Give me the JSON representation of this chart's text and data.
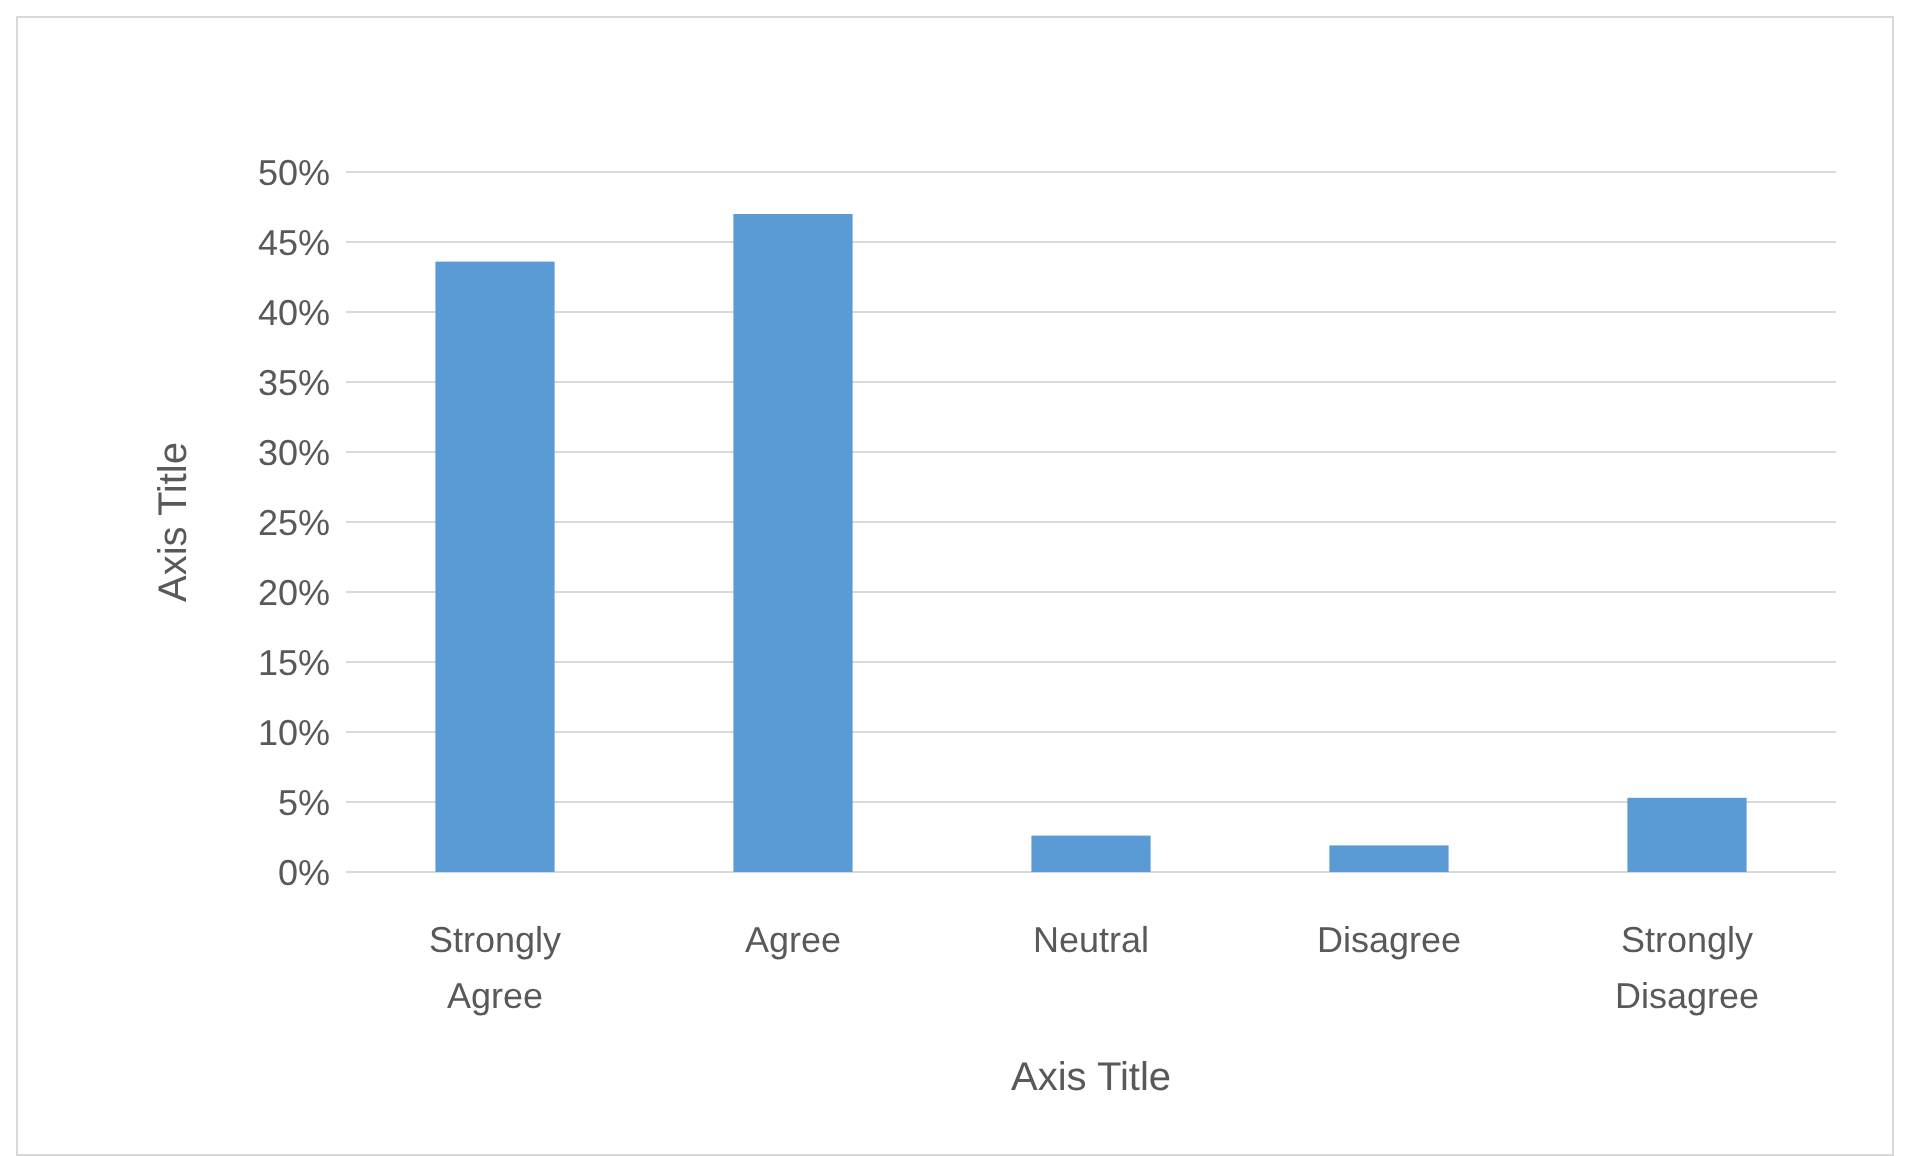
{
  "chart_data": {
    "type": "bar",
    "xlabel": "Axis Title",
    "ylabel": "Axis Title",
    "categories": [
      "Strongly Agree",
      "Agree",
      "Neutral",
      "Disagree",
      "Strongly Disagree"
    ],
    "values": [
      43.6,
      47,
      2.6,
      1.9,
      5.3
    ],
    "color": "#5b9bd5",
    "ylim": [
      0,
      50
    ],
    "yticks": [
      {
        "value": 0,
        "label": "0%"
      },
      {
        "value": 5,
        "label": "5%"
      },
      {
        "value": 10,
        "label": "10%"
      },
      {
        "value": 15,
        "label": "15%"
      },
      {
        "value": 20,
        "label": "20%"
      },
      {
        "value": 25,
        "label": "25%"
      },
      {
        "value": 30,
        "label": "30%"
      },
      {
        "value": 35,
        "label": "35%"
      },
      {
        "value": 40,
        "label": "40%"
      },
      {
        "value": 45,
        "label": "45%"
      },
      {
        "value": 50,
        "label": "50%"
      }
    ],
    "grid": "y"
  }
}
